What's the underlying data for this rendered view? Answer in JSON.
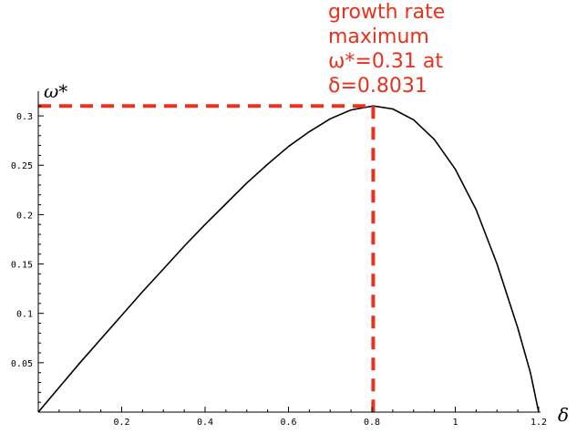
{
  "chart_data": {
    "type": "line",
    "title": "",
    "xlabel": "δ",
    "ylabel": "ω*",
    "xlim": [
      0,
      1.2
    ],
    "ylim": [
      0,
      0.325
    ],
    "x_ticks": [
      0.2,
      0.4,
      0.6,
      0.8,
      1,
      1.2
    ],
    "x_tick_labels": [
      "0.2",
      "0.4",
      "0.6",
      "0.8",
      "1",
      "1.2"
    ],
    "y_ticks": [
      0.05,
      0.1,
      0.15,
      0.2,
      0.25,
      0.3
    ],
    "y_tick_labels": [
      "0.05",
      "0.1",
      "0.15",
      "0.2",
      "0.25",
      "0.3"
    ],
    "grid": false,
    "legend": "none",
    "series": [
      {
        "x": [
          0,
          0.05,
          0.1,
          0.15,
          0.2,
          0.25,
          0.3,
          0.35,
          0.4,
          0.45,
          0.5,
          0.55,
          0.6,
          0.65,
          0.7,
          0.75,
          0.8031,
          0.85,
          0.9,
          0.95,
          1.0,
          1.05,
          1.1,
          1.15,
          1.18,
          1.2
        ],
        "y": [
          0,
          0.025,
          0.05,
          0.074,
          0.098,
          0.122,
          0.145,
          0.168,
          0.19,
          0.211,
          0.232,
          0.251,
          0.269,
          0.284,
          0.297,
          0.306,
          0.31,
          0.307,
          0.296,
          0.276,
          0.246,
          0.205,
          0.15,
          0.085,
          0.04,
          0
        ]
      }
    ],
    "annotation": {
      "lines": [
        "growth rate",
        "maximum",
        "ω*=0.31 at",
        "δ=0.8031"
      ],
      "x": 0.8031,
      "y": 0.31
    },
    "colors": {
      "curve": "#000000",
      "annotation": "#e8321e"
    }
  }
}
